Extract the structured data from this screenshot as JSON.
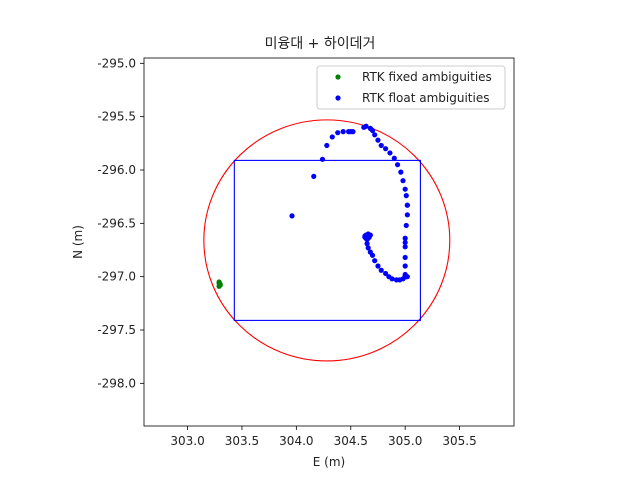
{
  "chart_data": {
    "type": "scatter",
    "title": "미융대 + 하이데거",
    "xlabel": "E (m)",
    "ylabel": "N (m)",
    "xlim": [
      302.6,
      306.0
    ],
    "ylim": [
      -298.4,
      -294.95
    ],
    "xticks": [
      303.0,
      303.5,
      304.0,
      304.5,
      305.0,
      305.5
    ],
    "xtick_labels": [
      "303.0",
      "303.5",
      "304.0",
      "304.5",
      "305.0",
      "305.5"
    ],
    "yticks": [
      -295.0,
      -295.5,
      -296.0,
      -296.5,
      -297.0,
      -297.5,
      -298.0
    ],
    "ytick_labels": [
      "-295.0",
      "-295.5",
      "-296.0",
      "-296.5",
      "-297.0",
      "-297.5",
      "-298.0"
    ],
    "grid": false,
    "legend_position": "top-right",
    "series": [
      {
        "name": "RTK fixed ambiguities",
        "color": "#008000",
        "x": [
          303.29,
          303.3,
          303.29,
          303.3,
          303.29
        ],
        "y": [
          -297.06,
          -297.08,
          -297.09,
          -297.07,
          -297.05
        ]
      },
      {
        "name": "RTK float ambiguities",
        "color": "#0000ff",
        "x": [
          303.96,
          304.16,
          304.24,
          304.28,
          304.33,
          304.38,
          304.43,
          304.48,
          304.5,
          304.52,
          304.62,
          304.64,
          304.68,
          304.7,
          304.72,
          304.75,
          304.78,
          304.82,
          304.86,
          304.9,
          304.93,
          304.96,
          304.98,
          305.0,
          305.01,
          305.02,
          305.02,
          305.02,
          305.01,
          305.0,
          305.0,
          305.0,
          305.0,
          305.0,
          305.0,
          305.0,
          305.0,
          305.0,
          305.01,
          305.02,
          304.98,
          304.95,
          304.92,
          304.88,
          304.85,
          304.82,
          304.78,
          304.75,
          304.72,
          304.7,
          304.68,
          304.66,
          304.65,
          304.64,
          304.64,
          304.63,
          304.63,
          304.64,
          304.65,
          304.66,
          304.66,
          304.67,
          304.68,
          304.66,
          304.64,
          304.65,
          304.67
        ],
        "y": [
          -296.43,
          -296.06,
          -295.9,
          -295.77,
          -295.69,
          -295.65,
          -295.64,
          -295.64,
          -295.64,
          -295.64,
          -295.6,
          -295.59,
          -295.61,
          -295.63,
          -295.67,
          -295.72,
          -295.77,
          -295.8,
          -295.84,
          -295.89,
          -295.95,
          -296.02,
          -296.1,
          -296.18,
          -296.24,
          -296.33,
          -296.33,
          -296.42,
          -296.52,
          -296.64,
          -296.68,
          -296.72,
          -296.82,
          -296.9,
          -296.98,
          -297.0,
          -297.0,
          -297.0,
          -297.0,
          -297.0,
          -297.02,
          -297.03,
          -297.03,
          -297.02,
          -297.0,
          -296.97,
          -296.94,
          -296.9,
          -296.85,
          -296.8,
          -296.77,
          -296.73,
          -296.69,
          -296.64,
          -296.62,
          -296.62,
          -296.63,
          -296.64,
          -296.65,
          -296.64,
          -296.62,
          -296.61,
          -296.61,
          -296.6,
          -296.61,
          -296.62,
          -296.63
        ]
      }
    ],
    "shapes": [
      {
        "kind": "circle",
        "color": "#ff0000",
        "center": [
          304.28,
          -296.66
        ],
        "radius": 1.13
      },
      {
        "kind": "rectangle",
        "color": "#0000ff",
        "x_range": [
          303.43,
          305.14
        ],
        "y_range": [
          -297.41,
          -295.91
        ]
      }
    ]
  }
}
